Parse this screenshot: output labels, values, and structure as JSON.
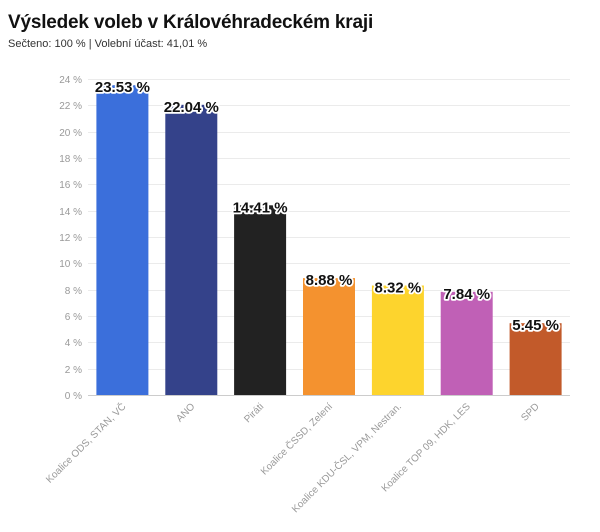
{
  "header": {
    "title": "Výsledek voleb v Královéhradeckém kraji",
    "subtitle": "Sečteno: 100 % | Volební účast: 41,01 %"
  },
  "chart_data": {
    "type": "bar",
    "categories": [
      "Koalice ODS, STAN, VČ",
      "ANO",
      "Piráti",
      "Koalice ČSSD, Zelení",
      "Koalice KDU-ČSL, VPM, Nestran.",
      "Koalice TOP 09, HDK, LES",
      "SPD"
    ],
    "values": [
      23.53,
      22.04,
      14.41,
      8.88,
      8.32,
      7.84,
      5.45
    ],
    "data_labels": [
      "23.53 %",
      "22.04 %",
      "14.41 %",
      "8.88 %",
      "8.32 %",
      "7.84 %",
      "5.45 %"
    ],
    "colors": [
      "#3b6fdb",
      "#34428a",
      "#222222",
      "#f4922f",
      "#fdd42d",
      "#c060b6",
      "#c25a2a"
    ],
    "ylim": [
      0,
      24
    ],
    "yticks": [
      0,
      2,
      4,
      6,
      8,
      10,
      12,
      14,
      16,
      18,
      20,
      22,
      24
    ],
    "ytick_labels": [
      "0 %",
      "2 %",
      "4 %",
      "6 %",
      "8 %",
      "10 %",
      "12 %",
      "14 %",
      "16 %",
      "18 %",
      "20 %",
      "22 %",
      "24 %"
    ],
    "grid": true,
    "legend": "none",
    "xlabel": "",
    "ylabel": ""
  }
}
